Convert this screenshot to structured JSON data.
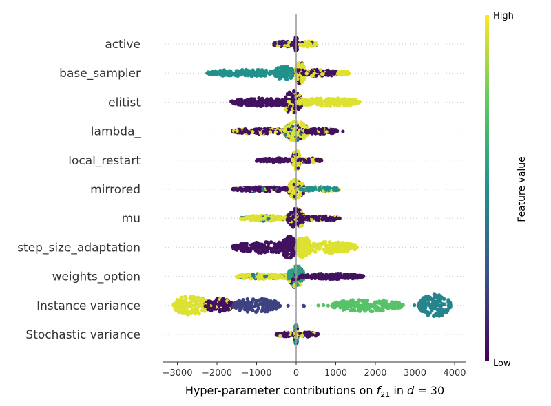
{
  "chart_data": {
    "type": "scatter",
    "subtype": "shap-beeswarm-summary",
    "xlabel": "Hyper-parameter contributions on f_21 in d = 30",
    "xlabel_parts": {
      "pre": "Hyper-parameter contributions on ",
      "f": "f",
      "fsub": "21",
      "mid": " in ",
      "d": "d",
      "eq": " = 30"
    },
    "xlim": [
      -3400,
      4300
    ],
    "xticks": [
      -3000,
      -2000,
      -1000,
      0,
      1000,
      2000,
      3000,
      4000
    ],
    "xtick_labels": [
      "−3000",
      "−2000",
      "−1000",
      "0",
      "1000",
      "2000",
      "3000",
      "4000"
    ],
    "colorbar": {
      "label": "Feature value",
      "high": "High",
      "low": "Low",
      "colormap": "viridis"
    },
    "features": [
      {
        "name": "active",
        "min": -550,
        "max": 500,
        "clusters": [
          {
            "x": 0,
            "w": 40,
            "h": 10,
            "c": 0.05
          },
          {
            "x": -330,
            "w": 250,
            "h": 4,
            "c": 0.08,
            "mix": [
              0.95,
              0.08
            ]
          },
          {
            "x": 300,
            "w": 220,
            "h": 4,
            "c": 0.95,
            "mix": [
              0.95,
              0.08
            ]
          }
        ]
      },
      {
        "name": "base_sampler",
        "min": -2250,
        "max": 1350,
        "clusters": [
          {
            "x": -1300,
            "w": 950,
            "h": 5,
            "c": 0.5
          },
          {
            "x": -300,
            "w": 250,
            "h": 10,
            "c": 0.5
          },
          {
            "x": 100,
            "w": 120,
            "h": 16,
            "c": 0.95,
            "mix": [
              0.95,
              0.05
            ]
          },
          {
            "x": 600,
            "w": 450,
            "h": 5,
            "c": 0.05,
            "mix": [
              0.05,
              0.95
            ]
          },
          {
            "x": 1200,
            "w": 150,
            "h": 3,
            "c": 0.95
          }
        ]
      },
      {
        "name": "elitist",
        "min": -1650,
        "max": 1600,
        "clusters": [
          {
            "x": -900,
            "w": 700,
            "h": 6,
            "c": 0.05
          },
          {
            "x": -100,
            "w": 250,
            "h": 16,
            "c": 0.05,
            "mix": [
              0.05,
              0.95
            ]
          },
          {
            "x": 800,
            "w": 800,
            "h": 6,
            "c": 0.95
          }
        ]
      },
      {
        "name": "lambda_",
        "min": -1650,
        "max": 1200,
        "clusters": [
          {
            "x": -900,
            "w": 700,
            "h": 4,
            "c": 0.05,
            "mix": [
              0.05,
              0.95
            ]
          },
          {
            "x": 0,
            "w": 300,
            "h": 14,
            "c": 0.95,
            "mix": [
              0.95,
              0.05,
              0.4
            ]
          },
          {
            "x": 600,
            "w": 450,
            "h": 4,
            "c": 0.05,
            "mix": [
              0.05,
              0.95
            ]
          }
        ]
      },
      {
        "name": "local_restart",
        "min": -1000,
        "max": 650,
        "clusters": [
          {
            "x": -550,
            "w": 450,
            "h": 3,
            "c": 0.05
          },
          {
            "x": 0,
            "w": 100,
            "h": 14,
            "c": 0.95,
            "mix": [
              0.95,
              0.05
            ]
          },
          {
            "x": 350,
            "w": 300,
            "h": 3,
            "c": 0.05,
            "mix": [
              0.05,
              0.95
            ]
          }
        ]
      },
      {
        "name": "mirrored",
        "min": -1600,
        "max": 1100,
        "clusters": [
          {
            "x": -850,
            "w": 750,
            "h": 3,
            "c": 0.05,
            "mix": [
              0.05,
              0.95,
              0.4
            ]
          },
          {
            "x": 0,
            "w": 200,
            "h": 14,
            "c": 0.95,
            "mix": [
              0.95,
              0.05
            ]
          },
          {
            "x": 600,
            "w": 500,
            "h": 3,
            "c": 0.5,
            "mix": [
              0.5,
              0.95
            ]
          }
        ]
      },
      {
        "name": "mu",
        "min": -1400,
        "max": 1100,
        "clusters": [
          {
            "x": -800,
            "w": 600,
            "h": 4,
            "c": 0.95,
            "mix": [
              0.95,
              0.4
            ]
          },
          {
            "x": 0,
            "w": 220,
            "h": 14,
            "c": 0.05,
            "mix": [
              0.05,
              0.95
            ]
          },
          {
            "x": 600,
            "w": 500,
            "h": 3,
            "c": 0.05,
            "mix": [
              0.05,
              0.95
            ]
          }
        ]
      },
      {
        "name": "step_size_adaptation",
        "min": -1600,
        "max": 1550,
        "clusters": [
          {
            "x": -800,
            "w": 800,
            "h": 8,
            "c": 0.05
          },
          {
            "x": -180,
            "w": 180,
            "h": 16,
            "c": 0.05
          },
          {
            "x": 180,
            "w": 180,
            "h": 16,
            "c": 0.95
          },
          {
            "x": 800,
            "w": 750,
            "h": 8,
            "c": 0.95
          }
        ]
      },
      {
        "name": "weights_option",
        "min": -1500,
        "max": 1700,
        "clusters": [
          {
            "x": -750,
            "w": 750,
            "h": 4,
            "c": 0.95,
            "mix": [
              0.95,
              0.4
            ]
          },
          {
            "x": 0,
            "w": 200,
            "h": 16,
            "c": 0.55,
            "mix": [
              0.55,
              0.95,
              0.05
            ]
          },
          {
            "x": 900,
            "w": 800,
            "h": 4,
            "c": 0.05
          }
        ]
      },
      {
        "name": "Instance variance",
        "min": -3100,
        "max": 3950,
        "clusters": [
          {
            "x": -2650,
            "w": 450,
            "h": 14,
            "c": 0.95
          },
          {
            "x": -1950,
            "w": 350,
            "h": 10,
            "c": 0.05,
            "mix": [
              0.05,
              0.95
            ]
          },
          {
            "x": -1000,
            "w": 600,
            "h": 10,
            "c": 0.2
          },
          {
            "x": 1800,
            "w": 900,
            "h": 9,
            "c": 0.72
          },
          {
            "x": 3500,
            "w": 400,
            "h": 16,
            "c": 0.45
          }
        ]
      },
      {
        "name": "Stochastic variance",
        "min": -500,
        "max": 550,
        "clusters": [
          {
            "x": 0,
            "w": 40,
            "h": 14,
            "c": 0.5,
            "mix": [
              0.5,
              0.95,
              0.05
            ]
          },
          {
            "x": -280,
            "w": 220,
            "h": 3,
            "c": 0.05,
            "mix": [
              0.05,
              0.95
            ]
          },
          {
            "x": 300,
            "w": 250,
            "h": 3,
            "c": 0.05,
            "mix": [
              0.05,
              0.95
            ]
          }
        ]
      }
    ]
  }
}
